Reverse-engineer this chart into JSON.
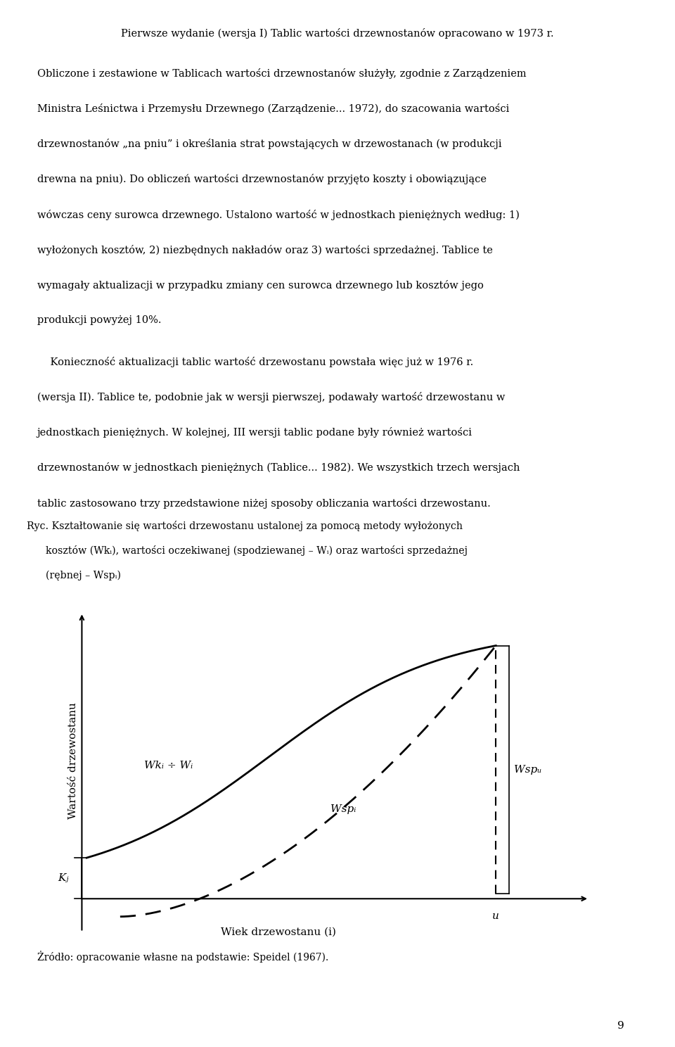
{
  "background_color": "#ffffff",
  "page_number": "9",
  "y_axis_label": "Wartość drzewostanu",
  "x_axis_label": "Wiek drzewostanu (i)",
  "label_wki": "Wkᵢ ÷ Wᵢ",
  "label_wspi": "Wspᵢ",
  "label_wspu": "Wspᵤ",
  "label_kj": "Kⱼ",
  "label_u": "u",
  "source_note": "Żródło: opracowanie własne na podstawie: Speidel (1967).",
  "caption_line1": "Ryc. Kształtowanie się wartości drzewostanu ustalonej za pomocą metody wyłożonych",
  "caption_line2": "      kosztów (Wkᵢ), wartości oczekiwanej (spodziewanej – Wᵢ) oraz wartości sprzedażnej",
  "caption_line3": "      (rębnej – Wspᵢ)",
  "body_line1": "Pierwsze wydanie (wersja I) Tablic wartości drzewnostanów opracowano w 1973 r.",
  "p2_lines": [
    "Obliczone i zestawione w Tablicach wartości drzewnostanów służyły, zgodnie z Zarządzeniem",
    "Ministra Leśnictwa i Przemysłu Drzewnego (Zarządzenie... 1972), do szacowania wartości",
    "drzewnostanów „na pniu” i określania strat powstających w drzewostanach (w produkcji",
    "drewna na pniu). Do obliczeń wartości drzewnostanów przyjęto koszty i obowiązujące",
    "wówczas ceny surowca drzewnego. Ustalono wartość w jednostkach pieniężnych według: 1)",
    "wyłożonych kosztów, 2) niezbędnych nakładów oraz 3) wartości sprzedażnej. Tablice te",
    "wymagały aktualizacji w przypadku zmiany cen surowca drzewnego lub kosztów jego",
    "produkcji powyżej 10%."
  ],
  "p3_lines": [
    "    Konieczność aktualizacji tablic wartość drzewostanu powstała więc już w 1976 r.",
    "(wersja II). Tablice te, podobnie jak w wersji pierwszej, podawały wartość drzewostanu w",
    "jednostkach pieniężnych. W kolejnej, III wersji tablic podane były również wartości",
    "drzewnostanów w jednostkach pieniężnych (Tablice... 1982). We wszystkich trzech wersjach",
    "tablic zastosowano trzy przedstawione niżej sposoby obliczania wartości drzewostanu."
  ]
}
